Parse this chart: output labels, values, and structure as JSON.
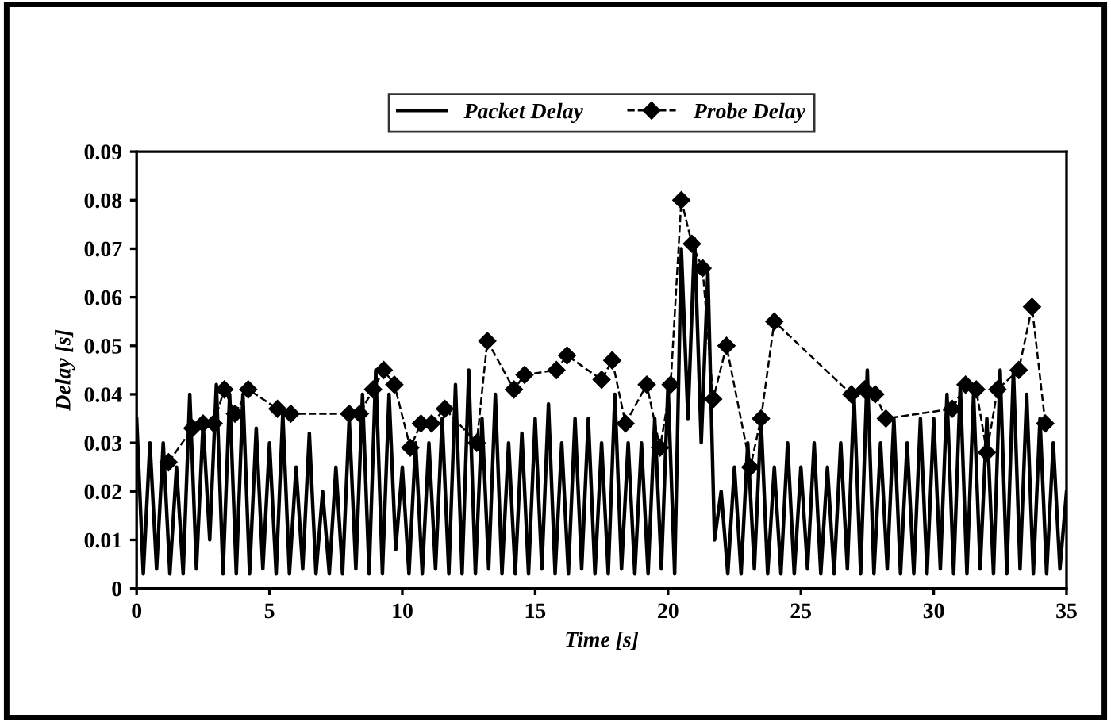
{
  "chart_data": {
    "type": "line",
    "xlabel": "Time [s]",
    "ylabel": "Delay [s]",
    "xlim": [
      0,
      35
    ],
    "ylim": [
      0,
      0.09
    ],
    "xticks": [
      0,
      5,
      10,
      15,
      20,
      25,
      30,
      35
    ],
    "yticks": [
      0,
      0.01,
      0.02,
      0.03,
      0.04,
      0.05,
      0.06,
      0.07,
      0.08,
      0.09
    ],
    "grid": false,
    "legend": "top",
    "series": [
      {
        "name": "Packet Delay",
        "color": "#000000",
        "marker": "none",
        "line_style": "solid",
        "x": [
          0,
          0.25,
          0.5,
          0.75,
          1,
          1.25,
          1.5,
          1.75,
          2,
          2.25,
          2.5,
          2.75,
          3,
          3.25,
          3.5,
          3.75,
          4,
          4.25,
          4.5,
          4.75,
          5,
          5.25,
          5.5,
          5.75,
          6,
          6.25,
          6.5,
          6.75,
          7,
          7.25,
          7.5,
          7.75,
          8,
          8.25,
          8.5,
          8.75,
          9,
          9.25,
          9.5,
          9.75,
          10,
          10.25,
          10.5,
          10.75,
          11,
          11.25,
          11.5,
          11.75,
          12,
          12.25,
          12.5,
          12.75,
          13,
          13.25,
          13.5,
          13.75,
          14,
          14.25,
          14.5,
          14.75,
          15,
          15.25,
          15.5,
          15.75,
          16,
          16.25,
          16.5,
          16.75,
          17,
          17.25,
          17.5,
          17.75,
          18,
          18.25,
          18.5,
          18.75,
          19,
          19.25,
          19.5,
          19.75,
          20,
          20.25,
          20.5,
          20.75,
          21,
          21.25,
          21.5,
          21.75,
          22,
          22.25,
          22.5,
          22.75,
          23,
          23.25,
          23.5,
          23.75,
          24,
          24.25,
          24.5,
          24.75,
          25,
          25.25,
          25.5,
          25.75,
          26,
          26.25,
          26.5,
          26.75,
          27,
          27.25,
          27.5,
          27.75,
          28,
          28.25,
          28.5,
          28.75,
          29,
          29.25,
          29.5,
          29.75,
          30,
          30.25,
          30.5,
          30.75,
          31,
          31.25,
          31.5,
          31.75,
          32,
          32.25,
          32.5,
          32.75,
          33,
          33.25,
          33.5,
          33.75,
          34,
          34.25,
          34.5,
          34.75,
          35
        ],
        "values": [
          0.035,
          0.003,
          0.03,
          0.004,
          0.03,
          0.003,
          0.025,
          0.003,
          0.04,
          0.004,
          0.034,
          0.01,
          0.042,
          0.003,
          0.04,
          0.003,
          0.04,
          0.003,
          0.033,
          0.004,
          0.03,
          0.003,
          0.036,
          0.003,
          0.025,
          0.004,
          0.032,
          0.003,
          0.02,
          0.003,
          0.025,
          0.003,
          0.035,
          0.004,
          0.04,
          0.003,
          0.045,
          0.003,
          0.04,
          0.008,
          0.025,
          0.003,
          0.03,
          0.003,
          0.03,
          0.004,
          0.035,
          0.003,
          0.042,
          0.003,
          0.045,
          0.003,
          0.035,
          0.004,
          0.04,
          0.003,
          0.03,
          0.003,
          0.032,
          0.003,
          0.035,
          0.004,
          0.038,
          0.003,
          0.03,
          0.003,
          0.035,
          0.004,
          0.035,
          0.003,
          0.03,
          0.003,
          0.04,
          0.004,
          0.03,
          0.003,
          0.03,
          0.003,
          0.035,
          0.004,
          0.042,
          0.003,
          0.07,
          0.035,
          0.072,
          0.03,
          0.065,
          0.01,
          0.02,
          0.003,
          0.025,
          0.003,
          0.03,
          0.004,
          0.035,
          0.003,
          0.025,
          0.003,
          0.03,
          0.003,
          0.025,
          0.004,
          0.03,
          0.003,
          0.025,
          0.003,
          0.03,
          0.004,
          0.04,
          0.003,
          0.045,
          0.003,
          0.03,
          0.004,
          0.035,
          0.003,
          0.03,
          0.003,
          0.035,
          0.003,
          0.035,
          0.004,
          0.04,
          0.003,
          0.042,
          0.003,
          0.04,
          0.004,
          0.035,
          0.003,
          0.045,
          0.003,
          0.045,
          0.004,
          0.04,
          0.003,
          0.035,
          0.003,
          0.03,
          0.004,
          0.02
        ]
      },
      {
        "name": "Probe Delay",
        "color": "#000000",
        "marker": "diamond",
        "line_style": "dashed",
        "x": [
          1.2,
          2.1,
          2.5,
          2.9,
          3.3,
          3.7,
          4.2,
          5.3,
          5.8,
          8.0,
          8.4,
          8.9,
          9.3,
          9.7,
          10.3,
          10.7,
          11.1,
          11.6,
          12.8,
          13.2,
          14.2,
          14.6,
          15.8,
          16.2,
          17.5,
          17.9,
          18.4,
          19.2,
          19.7,
          20.1,
          20.5,
          20.9,
          21.3,
          21.7,
          22.2,
          23.1,
          23.5,
          24.0,
          26.9,
          27.4,
          27.8,
          28.2,
          30.7,
          31.2,
          31.6,
          32.0,
          32.4,
          33.2,
          33.7,
          34.2
        ],
        "values": [
          0.026,
          0.033,
          0.034,
          0.034,
          0.041,
          0.036,
          0.041,
          0.037,
          0.036,
          0.036,
          0.036,
          0.041,
          0.045,
          0.042,
          0.029,
          0.034,
          0.034,
          0.037,
          0.03,
          0.051,
          0.041,
          0.044,
          0.045,
          0.048,
          0.043,
          0.047,
          0.034,
          0.042,
          0.029,
          0.042,
          0.08,
          0.071,
          0.066,
          0.039,
          0.05,
          0.025,
          0.035,
          0.055,
          0.04,
          0.041,
          0.04,
          0.035,
          0.037,
          0.042,
          0.041,
          0.028,
          0.041,
          0.045,
          0.058,
          0.034
        ]
      }
    ]
  }
}
